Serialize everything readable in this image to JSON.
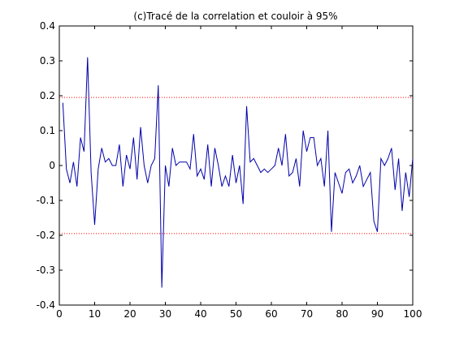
{
  "chart_data": {
    "type": "line",
    "title": "(c)Tracé de la correlation et couloir à 95%",
    "xlabel": "",
    "ylabel": "",
    "xlim": [
      0,
      100
    ],
    "ylim": [
      -0.4,
      0.4
    ],
    "x_ticks": [
      0,
      10,
      20,
      30,
      40,
      50,
      60,
      70,
      80,
      90,
      100
    ],
    "y_ticks": [
      -0.4,
      -0.3,
      -0.2,
      -0.1,
      0,
      0.1,
      0.2,
      0.3,
      0.4
    ],
    "x_tick_labels": [
      "0",
      "10",
      "20",
      "30",
      "40",
      "50",
      "60",
      "70",
      "80",
      "90",
      "100"
    ],
    "y_tick_labels": [
      "-0.4",
      "-0.3",
      "-0.2",
      "-0.1",
      "0",
      "0.1",
      "0.2",
      "0.3",
      "0.4"
    ],
    "grid": false,
    "series": [
      {
        "color": "#0000aa",
        "style": "solid",
        "x": [
          1,
          2,
          3,
          4,
          5,
          6,
          7,
          8,
          9,
          10,
          11,
          12,
          13,
          14,
          15,
          16,
          17,
          18,
          19,
          20,
          21,
          22,
          23,
          24,
          25,
          26,
          27,
          28,
          29,
          30,
          31,
          32,
          33,
          34,
          35,
          36,
          37,
          38,
          39,
          40,
          41,
          42,
          43,
          44,
          45,
          46,
          47,
          48,
          49,
          50,
          51,
          52,
          53,
          54,
          55,
          56,
          57,
          58,
          59,
          60,
          61,
          62,
          63,
          64,
          65,
          66,
          67,
          68,
          69,
          70,
          71,
          72,
          73,
          74,
          75,
          76,
          77,
          78,
          79,
          80,
          81,
          82,
          83,
          84,
          85,
          86,
          87,
          88,
          89,
          90,
          91,
          92,
          93,
          94,
          95,
          96,
          97,
          98,
          99,
          100
        ],
        "y": [
          0.18,
          -0.01,
          -0.05,
          0.01,
          -0.06,
          0.08,
          0.04,
          0.31,
          -0.02,
          -0.17,
          -0.01,
          0.05,
          0.01,
          0.02,
          0.0,
          0.0,
          0.06,
          -0.06,
          0.03,
          -0.01,
          0.08,
          -0.04,
          0.11,
          0.0,
          -0.05,
          0.0,
          0.02,
          0.23,
          -0.35,
          0.0,
          -0.06,
          0.05,
          0.0,
          0.01,
          0.01,
          0.01,
          -0.01,
          0.09,
          -0.03,
          -0.01,
          -0.04,
          0.06,
          -0.06,
          0.05,
          0.0,
          -0.06,
          -0.03,
          -0.06,
          0.03,
          -0.05,
          0.0,
          -0.11,
          0.17,
          0.01,
          0.02,
          0.0,
          -0.02,
          -0.01,
          -0.02,
          -0.01,
          0.0,
          0.05,
          0.0,
          0.09,
          -0.03,
          -0.02,
          0.02,
          -0.06,
          0.1,
          0.04,
          0.08,
          0.08,
          0.0,
          0.02,
          -0.06,
          0.1,
          -0.19,
          -0.02,
          -0.05,
          -0.08,
          -0.02,
          -0.01,
          -0.05,
          -0.03,
          0.0,
          -0.06,
          -0.04,
          -0.02,
          -0.16,
          -0.19,
          0.02,
          0.0,
          0.02,
          0.05,
          -0.07,
          0.02,
          -0.13,
          -0.02,
          -0.09,
          0.02
        ]
      },
      {
        "color": "#ff0000",
        "style": "dotted",
        "x": [
          0,
          100
        ],
        "y": [
          0.195,
          0.195
        ]
      },
      {
        "color": "#ff0000",
        "style": "dotted",
        "x": [
          0,
          100
        ],
        "y": [
          -0.195,
          -0.195
        ]
      }
    ]
  }
}
